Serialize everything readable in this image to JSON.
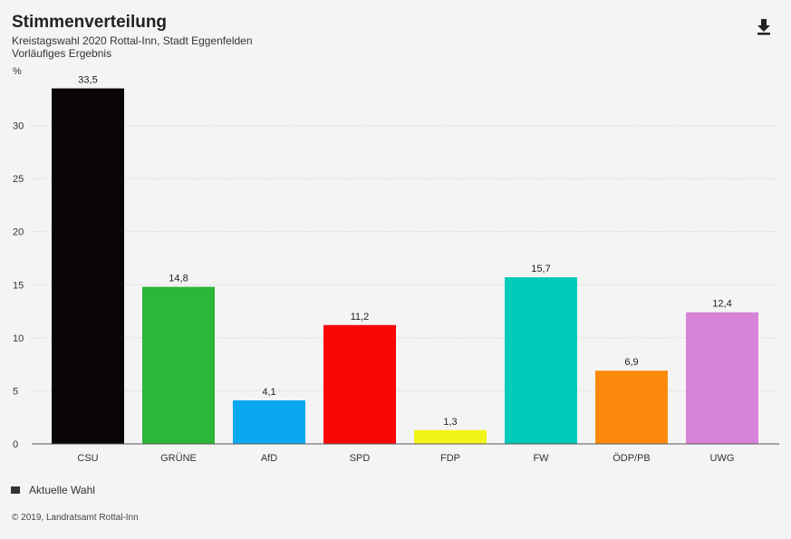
{
  "header": {
    "title": "Stimmenverteilung",
    "subtitle": "Kreistagswahl 2020 Rottal-Inn, Stadt Eggenfelden",
    "subtitle2": "Vorläufiges Ergebnis",
    "download_icon": "download-icon"
  },
  "chart_data": {
    "type": "bar",
    "title": "Stimmenverteilung",
    "ylabel": "%",
    "xlabel": "",
    "ylim": [
      0,
      35
    ],
    "yticks": [
      0,
      5,
      10,
      15,
      20,
      25,
      30
    ],
    "grid": true,
    "categories": [
      "CSU",
      "GRÜNE",
      "AfD",
      "SPD",
      "FDP",
      "FW",
      "ÖDP/PB",
      "UWG"
    ],
    "series": [
      {
        "name": "Aktuelle Wahl",
        "values": [
          33.5,
          14.8,
          4.1,
          11.2,
          1.3,
          15.7,
          6.9,
          12.4
        ],
        "labels": [
          "33,5",
          "14,8",
          "4,1",
          "11,2",
          "1,3",
          "15,7",
          "6,9",
          "12,4"
        ]
      }
    ],
    "colors": [
      "#0a0509",
      "#2bb737",
      "#0aa8f0",
      "#fb0606",
      "#f2f51a",
      "#00cbb8",
      "#fb8a0c",
      "#d783d8"
    ],
    "legend": "bottom-left"
  },
  "legend": {
    "label": "Aktuelle Wahl"
  },
  "footer": {
    "text": "© 2019, Landratsamt Rottal-Inn"
  }
}
